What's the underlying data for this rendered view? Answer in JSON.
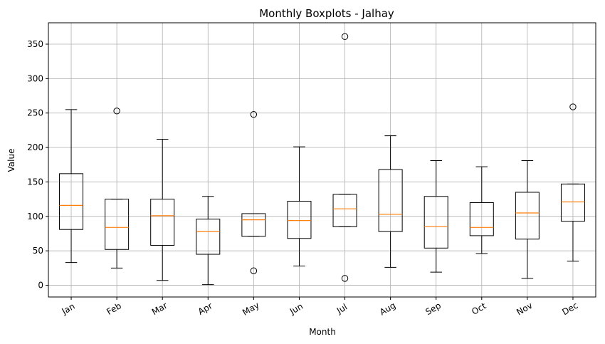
{
  "chart_data": {
    "type": "boxplot",
    "title": "Monthly Boxplots - Jalhay",
    "xlabel": "Month",
    "ylabel": "Value",
    "ylim": [
      -17,
      381
    ],
    "yticks": [
      0,
      50,
      100,
      150,
      200,
      250,
      300,
      350
    ],
    "grid": true,
    "categories": [
      "Jan",
      "Feb",
      "Mar",
      "Apr",
      "May",
      "Jun",
      "Jul",
      "Aug",
      "Sep",
      "Oct",
      "Nov",
      "Dec"
    ],
    "boxes": [
      {
        "whisker_low": 33,
        "q1": 81,
        "median": 116,
        "q3": 162,
        "whisker_high": 255,
        "outliers": []
      },
      {
        "whisker_low": 25,
        "q1": 52,
        "median": 84,
        "q3": 125,
        "whisker_high": 125,
        "outliers": [
          253
        ]
      },
      {
        "whisker_low": 7,
        "q1": 58,
        "median": 101,
        "q3": 125,
        "whisker_high": 212,
        "outliers": []
      },
      {
        "whisker_low": 1,
        "q1": 45,
        "median": 78,
        "q3": 96,
        "whisker_high": 129,
        "outliers": []
      },
      {
        "whisker_low": 71,
        "q1": 71,
        "median": 95,
        "q3": 104,
        "whisker_high": 104,
        "outliers": [
          248,
          21
        ]
      },
      {
        "whisker_low": 28,
        "q1": 68,
        "median": 94,
        "q3": 122,
        "whisker_high": 201,
        "outliers": []
      },
      {
        "whisker_low": 85,
        "q1": 85,
        "median": 111,
        "q3": 132,
        "whisker_high": 132,
        "outliers": [
          361,
          10
        ]
      },
      {
        "whisker_low": 26,
        "q1": 78,
        "median": 103,
        "q3": 168,
        "whisker_high": 217,
        "outliers": []
      },
      {
        "whisker_low": 19,
        "q1": 54,
        "median": 85,
        "q3": 129,
        "whisker_high": 181,
        "outliers": []
      },
      {
        "whisker_low": 46,
        "q1": 72,
        "median": 84,
        "q3": 120,
        "whisker_high": 172,
        "outliers": []
      },
      {
        "whisker_low": 10,
        "q1": 67,
        "median": 105,
        "q3": 135,
        "whisker_high": 181,
        "outliers": []
      },
      {
        "whisker_low": 35,
        "q1": 93,
        "median": 121,
        "q3": 147,
        "whisker_high": 147,
        "outliers": [
          259
        ]
      }
    ],
    "colors": {
      "box": "#000000",
      "median": "#ff7f0e",
      "grid": "#b0b0b0"
    }
  }
}
